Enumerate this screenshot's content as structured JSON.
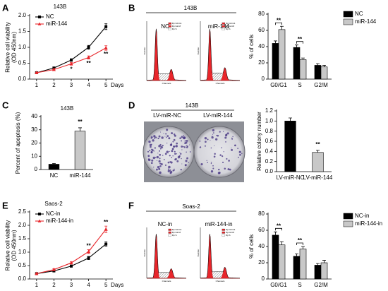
{
  "chart_data": [
    {
      "type": "line",
      "panel": "A",
      "title": "143B",
      "ylabel": [
        "Relative cell viability",
        "(OD 450nm)"
      ],
      "xlabel": "Days",
      "x": [
        1,
        2,
        3,
        4,
        5
      ],
      "xlim": [
        0.6,
        5.4
      ],
      "xticks": [
        1,
        2,
        3,
        4,
        5
      ],
      "ylim": [
        0,
        2
      ],
      "yticks": [
        {
          "value": 0,
          "label": "0.0"
        },
        0.5,
        {
          "value": 1,
          "label": "1.0"
        },
        1.5,
        {
          "value": 2,
          "label": "2.0"
        }
      ],
      "legend": "upper left",
      "series": [
        {
          "name": "NC",
          "color": "#000000",
          "marker": "square",
          "values": [
            0.2,
            0.35,
            0.6,
            1.0,
            1.65
          ],
          "errors": [
            0.02,
            0.03,
            0.04,
            0.06,
            0.09
          ]
        },
        {
          "name": "miR-144",
          "color": "#e8262b",
          "marker": "triangle",
          "values": [
            0.2,
            0.3,
            0.48,
            0.68,
            0.98
          ],
          "errors": [
            0.02,
            0.03,
            0.04,
            0.05,
            0.07
          ]
        }
      ],
      "annotations": [
        {
          "x": 3,
          "text": "*"
        },
        {
          "x": 4,
          "text": "**"
        },
        {
          "x": 5,
          "text": "**"
        }
      ]
    },
    {
      "type": "bar",
      "panel": "B",
      "ylabel": "% of cells",
      "categories": [
        "G0/G1",
        "S",
        "G2/M"
      ],
      "ylim": [
        0,
        80
      ],
      "yticks": [
        0,
        20,
        40,
        60,
        80
      ],
      "legend": "right",
      "series": [
        {
          "name": "NC",
          "color": "#000000",
          "values": [
            44,
            39,
            17
          ],
          "errors": [
            3,
            3,
            2
          ]
        },
        {
          "name": "miR-144",
          "color": "#c8c8c8",
          "values": [
            61,
            24,
            15
          ],
          "errors": [
            4,
            2,
            2
          ]
        }
      ],
      "annotations": [
        {
          "category": "G0/G1",
          "text": "**"
        },
        {
          "category": "S",
          "text": "**"
        }
      ]
    },
    {
      "type": "bar",
      "panel": "C",
      "title": "143B",
      "ylabel": "Percent of apoptosis (%)",
      "categories": [
        "NC",
        "miR-144"
      ],
      "values": [
        4,
        29
      ],
      "errors": [
        0.6,
        2.5
      ],
      "colors": [
        "#000000",
        "#c8c8c8"
      ],
      "ylim": [
        0,
        40
      ],
      "yticks": [
        0,
        10,
        20,
        30,
        40
      ],
      "annotations": [
        {
          "category": "miR-144",
          "text": "**"
        }
      ]
    },
    {
      "type": "bar",
      "panel": "D",
      "ylabel": "Relative colony number",
      "categories": [
        "LV-miR-NC",
        "LV-miR-144"
      ],
      "values": [
        1.0,
        0.38
      ],
      "errors": [
        0.06,
        0.04
      ],
      "colors": [
        "#000000",
        "#c8c8c8"
      ],
      "ylim": [
        0,
        1.2
      ],
      "yticks": [
        {
          "value": 0,
          "label": "0.0"
        },
        0.2,
        0.4,
        0.6,
        0.8,
        {
          "value": 1,
          "label": "1.0"
        },
        1.2
      ],
      "annotations": [
        {
          "category": "LV-miR-144",
          "text": "**"
        }
      ]
    },
    {
      "type": "line",
      "panel": "E",
      "title": "Saos-2",
      "ylabel": [
        "Relative cell viability",
        "(OD 450nm)"
      ],
      "xlabel": "Days",
      "x": [
        1,
        2,
        3,
        4,
        5
      ],
      "xlim": [
        0.6,
        5.4
      ],
      "xticks": [
        1,
        2,
        3,
        4,
        5
      ],
      "ylim": [
        0,
        2.5
      ],
      "yticks": [
        {
          "value": 0,
          "label": "0.0"
        },
        0.5,
        {
          "value": 1,
          "label": "1.0"
        },
        1.5,
        {
          "value": 2,
          "label": "2.0"
        },
        2.5
      ],
      "legend": "upper left",
      "series": [
        {
          "name": "NC-in",
          "color": "#000000",
          "marker": "square",
          "values": [
            0.2,
            0.3,
            0.48,
            0.78,
            1.3
          ],
          "errors": [
            0.02,
            0.03,
            0.04,
            0.06,
            0.08
          ]
        },
        {
          "name": "miR-144-in",
          "color": "#e8262b",
          "marker": "triangle",
          "values": [
            0.2,
            0.35,
            0.6,
            1.02,
            1.85
          ],
          "errors": [
            0.02,
            0.03,
            0.04,
            0.07,
            0.12
          ]
        }
      ],
      "annotations": [
        {
          "x": 4,
          "text": "**"
        },
        {
          "x": 5,
          "text": "**"
        }
      ]
    },
    {
      "type": "bar",
      "panel": "F",
      "ylabel": "% of cells",
      "categories": [
        "G0/G1",
        "S",
        "G2/M"
      ],
      "ylim": [
        0,
        80
      ],
      "yticks": [
        0,
        20,
        40,
        60,
        80
      ],
      "legend": "right",
      "series": [
        {
          "name": "NC-in",
          "color": "#000000",
          "values": [
            54,
            28,
            17
          ],
          "errors": [
            4,
            3,
            2
          ]
        },
        {
          "name": "miR-144-in",
          "color": "#c8c8c8",
          "values": [
            42,
            37,
            20
          ],
          "errors": [
            4,
            3,
            3
          ]
        }
      ],
      "annotations": [
        {
          "category": "G0/G1",
          "text": "**"
        },
        {
          "category": "S",
          "text": "**"
        }
      ]
    }
  ],
  "images": {
    "flow_B": {
      "title": "143B",
      "labels": [
        "NC",
        "miR-144"
      ],
      "legend": [
        "Dp G0-G1",
        "Dp G2-M",
        "Dp S"
      ],
      "xlabel": "Channels",
      "ylabel": "Number"
    },
    "colony_D": {
      "title": "143B",
      "labels": [
        "LV-miR-NC",
        "LV-miR-144"
      ]
    },
    "flow_F": {
      "title": "Soas-2",
      "labels": [
        "NC-in",
        "miR-144-in"
      ],
      "legend": [
        "Dp G0-G1",
        "Dp G2-M",
        "Dp S"
      ],
      "xlabel": "Channels",
      "ylabel": "Number"
    }
  }
}
